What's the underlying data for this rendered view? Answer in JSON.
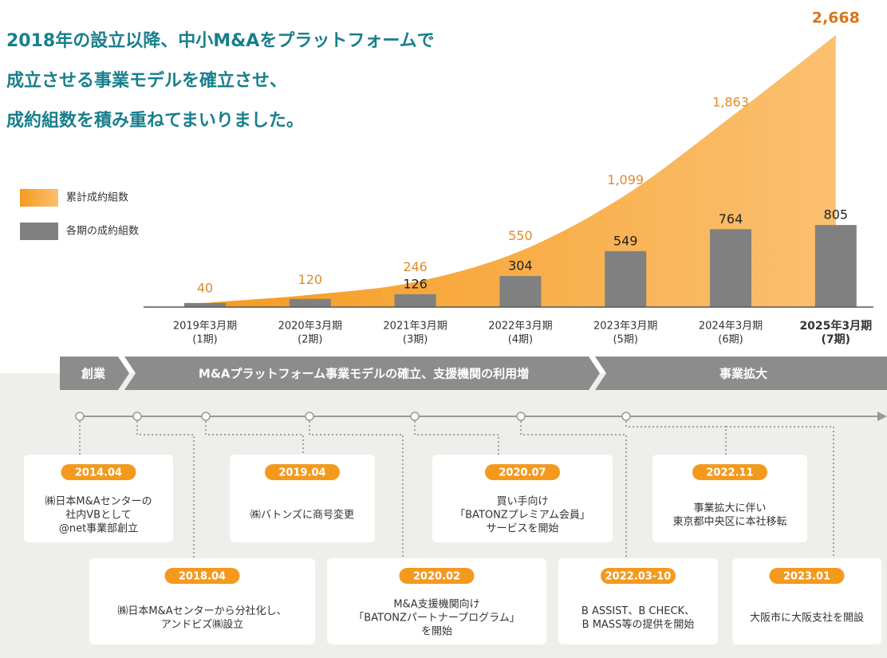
{
  "chart_data": {
    "type": "bar",
    "title_lines": [
      "2018年の設立以降、中小M&Aをプラットフォームで",
      "成立させる事業モデルを確立させ、",
      "成約組数を積み重ねてまいりました。"
    ],
    "categories": [
      "2019年3月期",
      "2020年3月期",
      "2021年3月期",
      "2022年3月期",
      "2023年3月期",
      "2024年3月期",
      "2025年3月期"
    ],
    "category_sublabels": [
      "(1期)",
      "(2期)",
      "(3期)",
      "(4期)",
      "(5期)",
      "(6期)",
      "(7期)"
    ],
    "series": [
      {
        "name": "累計成約組数",
        "color": "#f7a030",
        "kind": "area",
        "values": [
          40,
          120,
          246,
          550,
          1099,
          1863,
          2668
        ],
        "value_labels": [
          "40",
          "120",
          "246",
          "550",
          "1,099",
          "1,863",
          "2,668"
        ]
      },
      {
        "name": "各期の成約組数",
        "color": "#808080",
        "kind": "bar",
        "values": [
          40,
          80,
          126,
          304,
          549,
          764,
          805
        ],
        "value_labels": [
          null,
          null,
          "126",
          "304",
          "549",
          "764",
          "805"
        ]
      }
    ]
  },
  "timeline": {
    "phases": [
      "創業",
      "M&Aプラットフォーム事業モデルの確立、支援機関の利用増",
      "事業拡大"
    ],
    "milestones": [
      {
        "date": "2014.04",
        "lines": [
          "㈱日本M&Aセンターの",
          "社内VBとして",
          "@net事業部創立"
        ]
      },
      {
        "date": "2018.04",
        "lines": [
          "㈱日本M&Aセンターから分社化し、",
          "アンドビズ㈱設立"
        ]
      },
      {
        "date": "2019.04",
        "lines": [
          "㈱バトンズに商号変更"
        ]
      },
      {
        "date": "2020.02",
        "lines": [
          "M&A支援機関向け",
          "「BATONZパートナープログラム」",
          "を開始"
        ]
      },
      {
        "date": "2020.07",
        "lines": [
          "買い手向け",
          "「BATONZプレミアム会員」",
          "サービスを開始"
        ]
      },
      {
        "date": "2022.03-10",
        "lines": [
          "B ASSIST、B CHECK、",
          "B MASS等の提供を開始"
        ]
      },
      {
        "date": "2022.11",
        "lines": [
          "事業拡大に伴い",
          "東京都中央区に本社移転"
        ]
      },
      {
        "date": "2023.01",
        "lines": [
          "大阪市に大阪支社を開設"
        ]
      }
    ]
  }
}
